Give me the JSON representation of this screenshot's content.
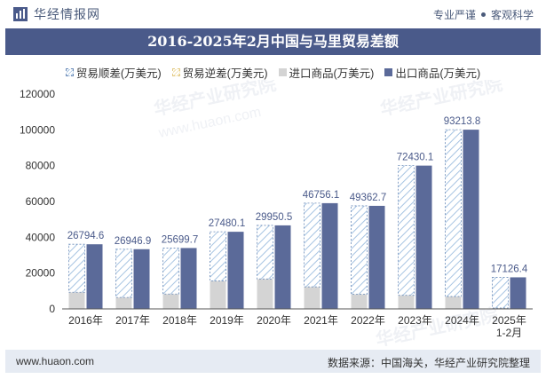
{
  "brand": {
    "logo_text": "华经情报网",
    "tagline_left": "专业严谨",
    "tagline_right": "客观科学"
  },
  "watermark": {
    "cn": "华经产业研究院",
    "url": "www.huaon.com"
  },
  "footer": {
    "website": "www.huaon.com",
    "source": "数据来源：中国海关，华经产业研究院整理"
  },
  "chart_data": {
    "type": "bar",
    "title": "2016-2025年2月中国与马里贸易差额",
    "legend": [
      "贸易顺差(万美元)",
      "贸易逆差(万美元)",
      "进口商品(万美元)",
      "出口商品(万美元)"
    ],
    "categories": [
      "2016年",
      "2017年",
      "2018年",
      "2019年",
      "2020年",
      "2021年",
      "2022年",
      "2023年",
      "2024年",
      "2025年\n1-2月"
    ],
    "series": [
      {
        "name": "贸易顺差(万美元)",
        "values": [
          26794.6,
          26946.9,
          25699.7,
          27480.1,
          29950.5,
          46756.1,
          49362.7,
          72430.1,
          93213.8,
          17126.4
        ]
      },
      {
        "name": "贸易逆差(万美元)",
        "values": [
          0,
          0,
          0,
          0,
          0,
          0,
          0,
          0,
          0,
          0
        ]
      },
      {
        "name": "进口商品(万美元)",
        "values": [
          9300,
          6400,
          8300,
          15600,
          16700,
          12300,
          8200,
          7600,
          6900,
          500
        ]
      },
      {
        "name": "出口商品(万美元)",
        "values": [
          36094.6,
          33346.9,
          33999.7,
          43080.1,
          46650.5,
          59056.1,
          57562.7,
          80030.1,
          100113.8,
          17626.4
        ]
      }
    ],
    "data_labels": [
      "26794.6",
      "26946.9",
      "25699.7",
      "27480.1",
      "29950.5",
      "46756.1",
      "49362.7",
      "72430.1",
      "93213.8",
      "17126.4"
    ],
    "y_ticks": [
      "0",
      "20000",
      "40000",
      "60000",
      "80000",
      "100000",
      "120000"
    ],
    "ylim": [
      0,
      120000
    ],
    "xlabel": "",
    "ylabel": "",
    "colors": {
      "surplus": "#6a8ab8",
      "surplus_hatch": "#a7c4e2",
      "deficit": "#e2c880",
      "import": "#d4d4d4",
      "export": "#5b6a99",
      "axis": "#333333",
      "label": "#4a5a8a"
    }
  }
}
